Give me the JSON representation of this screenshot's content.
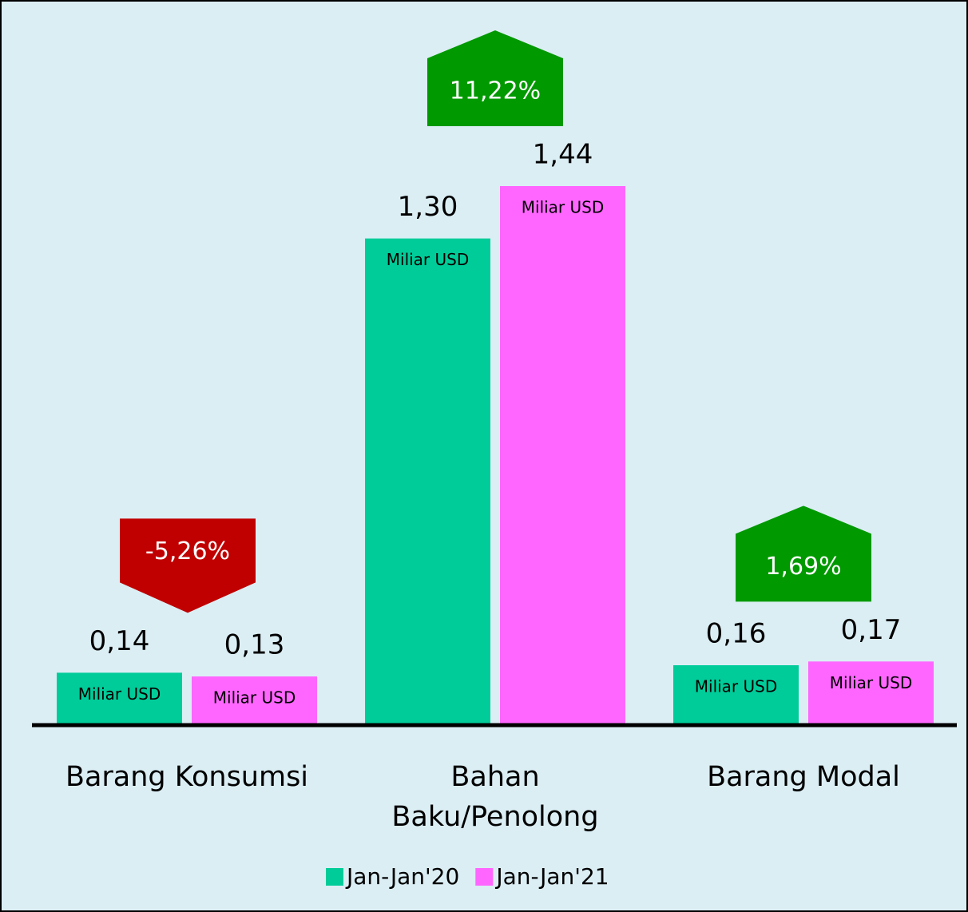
{
  "chart_data": {
    "type": "bar",
    "categories": [
      "Barang Konsumsi",
      "Bahan Baku/Penolong",
      "Barang Modal"
    ],
    "series": [
      {
        "name": "Jan-Jan'20",
        "color": "#00cc99",
        "values": [
          0.14,
          1.3,
          0.16
        ],
        "value_labels": [
          "0,14",
          "1,30",
          "0,16"
        ]
      },
      {
        "name": "Jan-Jan'21",
        "color": "#ff66ff",
        "values": [
          0.13,
          1.44,
          0.17
        ],
        "value_labels": [
          "0,13",
          "1,44",
          "0,17"
        ]
      }
    ],
    "unit_label": "Miliar USD",
    "changes": [
      {
        "value": -5.26,
        "label": "-5,26%"
      },
      {
        "value": 11.22,
        "label": "11,22%"
      },
      {
        "value": 1.69,
        "label": "1,69%"
      }
    ],
    "change_colors": {
      "up": "#009900",
      "down": "#c00000"
    },
    "background": "#dbeef4"
  }
}
